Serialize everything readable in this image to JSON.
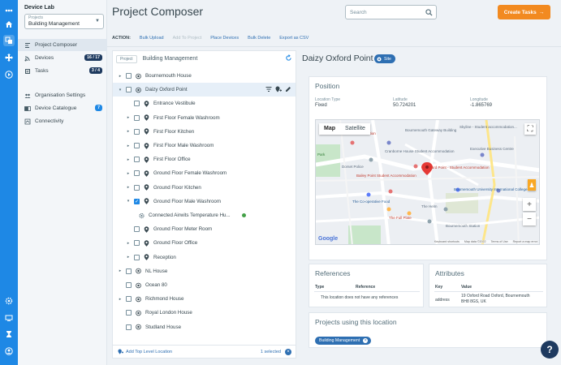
{
  "app": {
    "name": "Device Lab"
  },
  "project_select": {
    "label": "Projects",
    "value": "Building Management"
  },
  "nav": [
    {
      "label": "Project Composer",
      "active": true
    },
    {
      "label": "Devices",
      "badge": "16 / 17"
    },
    {
      "label": "Tasks",
      "badge": "3 / 4"
    },
    {
      "label": "Organisation Settings"
    },
    {
      "label": "Device Catalogue",
      "badge": "7"
    },
    {
      "label": "Connectivity"
    }
  ],
  "header": {
    "title": "Project Composer",
    "search_placeholder": "Search",
    "create_label": "Create Tasks"
  },
  "actions": {
    "label": "ACTION:",
    "bulk_upload": "Bulk Upload",
    "add_to_project": "Add To Project",
    "place_devices": "Place Devices",
    "bulk_delete": "Bulk Delete",
    "export_csv": "Export as CSV"
  },
  "tree": {
    "chip": "Project",
    "project_name": "Building Management",
    "rows": [
      {
        "label": "Bournemouth House",
        "level": 0,
        "expander": "▸",
        "checkbox": true,
        "icon": "site"
      },
      {
        "label": "Daizy Oxford Point",
        "level": 0,
        "expander": "▾",
        "checkbox": true,
        "icon": "site",
        "selected": true
      },
      {
        "label": "Entrance Vestibule",
        "level": 1,
        "expander": "",
        "checkbox": true,
        "icon": "pin"
      },
      {
        "label": "First Floor Female Washroom",
        "level": 1,
        "expander": "▸",
        "checkbox": true,
        "icon": "pin"
      },
      {
        "label": "First Floor Kitchen",
        "level": 1,
        "expander": "▸",
        "checkbox": true,
        "icon": "pin"
      },
      {
        "label": "First Floor Male Washroom",
        "level": 1,
        "expander": "▸",
        "checkbox": true,
        "icon": "pin"
      },
      {
        "label": "First Floor Office",
        "level": 1,
        "expander": "▸",
        "checkbox": true,
        "icon": "pin"
      },
      {
        "label": "Ground Floor Female Washroom",
        "level": 1,
        "expander": "▸",
        "checkbox": true,
        "icon": "pin"
      },
      {
        "label": "Ground Floor Kitchen",
        "level": 1,
        "expander": "▸",
        "checkbox": true,
        "icon": "pin"
      },
      {
        "label": "Ground Floor Male Washroom",
        "level": 1,
        "expander": "▾",
        "checkbox": true,
        "checked": true,
        "icon": "pin"
      },
      {
        "label": "Connected Airwits Temperature Hu...",
        "level": 2,
        "expander": "",
        "checkbox": false,
        "icon": "device",
        "status": "online"
      },
      {
        "label": "Ground Floor Meter Room",
        "level": 1,
        "expander": "",
        "checkbox": true,
        "icon": "pin"
      },
      {
        "label": "Ground Floor Office",
        "level": 1,
        "expander": "▸",
        "checkbox": true,
        "icon": "pin"
      },
      {
        "label": "Reception",
        "level": 1,
        "expander": "▸",
        "checkbox": true,
        "icon": "pin"
      },
      {
        "label": "NL House",
        "level": 0,
        "expander": "▸",
        "checkbox": true,
        "icon": "site"
      },
      {
        "label": "Ocean 80",
        "level": 0,
        "expander": "",
        "checkbox": true,
        "icon": "site"
      },
      {
        "label": "Richmond House",
        "level": 0,
        "expander": "▸",
        "checkbox": true,
        "icon": "site"
      },
      {
        "label": "Royal London House",
        "level": 0,
        "expander": "",
        "checkbox": true,
        "icon": "site"
      },
      {
        "label": "Studland House",
        "level": 0,
        "expander": "",
        "checkbox": true,
        "icon": "site"
      }
    ],
    "add_top_level": "Add Top Level Location",
    "selected_count": "1 selected"
  },
  "detail": {
    "title": "Daizy Oxford Point",
    "type_chip": "Site",
    "position": {
      "title": "Position",
      "location_type_label": "Location Type",
      "location_type_value": "Fixed",
      "latitude_label": "Latitude",
      "latitude_value": "50.724201",
      "longitude_label": "Longitude",
      "longitude_value": "-1.865769"
    },
    "map": {
      "tab_map": "Map",
      "tab_satellite": "Satellite",
      "labels": [
        "Skyline - Student accommodation...",
        "Bournemouth Gateway Building",
        "Bournemouth Police Station",
        "Cranborne House Student Accommodation",
        "Executive Business Centre",
        "Dorset Police",
        "Bailey Point Student Accommodation",
        "Ford Point - Student Accommodation",
        "Bournemouth University International College",
        "The Co-operative Food",
        "The Helm",
        "The Full Plate",
        "Bournemouth Station",
        "Park"
      ],
      "footer": [
        "Keyboard shortcuts",
        "Map data ©2022",
        "Terms of Use",
        "Report a map error"
      ]
    },
    "references": {
      "title": "References",
      "col_type": "Type",
      "col_reference": "Reference",
      "empty": "This location does not have any references"
    },
    "attributes": {
      "title": "Attributes",
      "col_key": "Key",
      "col_value": "Value",
      "key": "address",
      "value_line1": "19 Oxford Road Oxford, Bournemouth",
      "value_line2": "BH8 8GS, UK"
    },
    "projects": {
      "title": "Projects using this location",
      "chip": "Building Management"
    }
  },
  "help": {
    "label": "?"
  },
  "colors": {
    "primary": "#1e88e5",
    "accent": "#f28a20",
    "navy": "#1e3a5f",
    "online": "#43a047"
  }
}
